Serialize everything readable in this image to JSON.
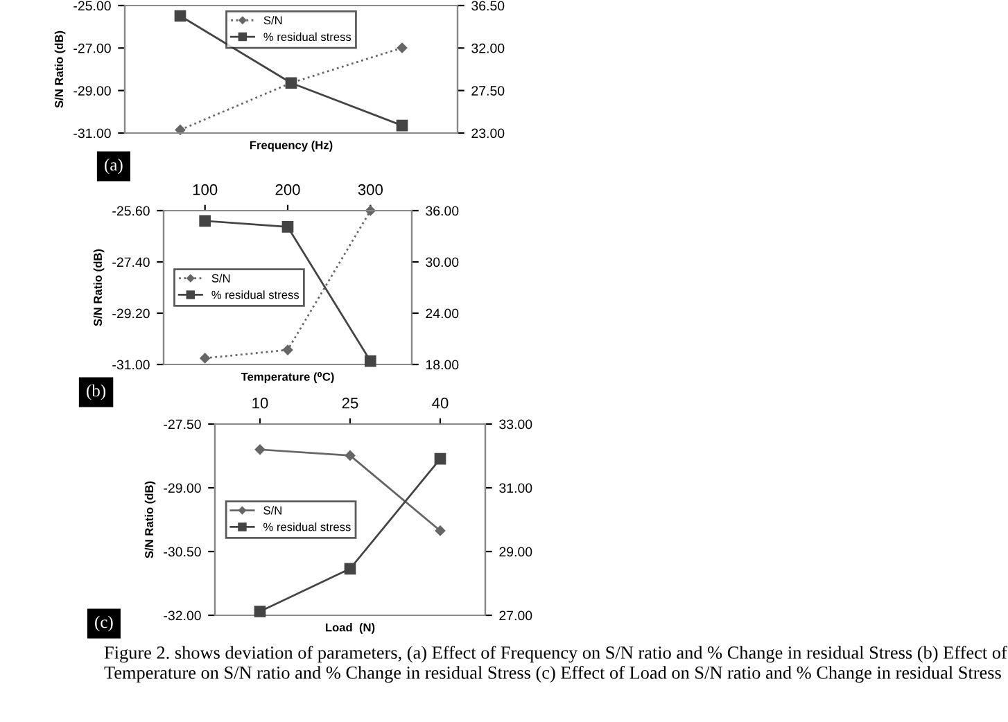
{
  "chart_data": [
    {
      "type": "line",
      "categories": [
        null,
        null,
        null
      ],
      "xlabel": "Frequency (Hz)",
      "ylabel": "S/N Ratio (dB)",
      "legend": "top",
      "annotations": [
        "(a)"
      ],
      "ylim": [
        -31,
        -25
      ],
      "yticks": [
        {
          "value": -31,
          "label": "-31.00"
        },
        {
          "value": -29,
          "label": "-29.00"
        },
        {
          "value": -27,
          "label": "-27.00"
        },
        {
          "value": -25,
          "label": "-25.00"
        }
      ],
      "y2lim": [
        23,
        36.5
      ],
      "y2ticks": [
        {
          "value": 23,
          "label": "23.00"
        },
        {
          "value": 27.5,
          "label": "27.50"
        },
        {
          "value": 32,
          "label": "32.00"
        },
        {
          "value": 36.5,
          "label": "36.50"
        }
      ],
      "series": [
        {
          "name": "S/N",
          "color": "#666666",
          "marker": "diamond",
          "line_style": "dotted",
          "values": [
            -30.85,
            -28.64,
            -26.99
          ]
        },
        {
          "name": "% residual stress",
          "color": "#444444",
          "marker": "square",
          "line_style": "solid",
          "axis": "y2",
          "values": [
            35.4,
            28.3,
            23.8
          ]
        }
      ]
    },
    {
      "type": "line",
      "categories": [
        "100",
        "200",
        "300"
      ],
      "xlabel": "Temperature (⁰C)",
      "ylabel": "S/N Ratio (dB)",
      "legend": "left",
      "annotations": [
        "(b)"
      ],
      "ylim": [
        -31,
        -25.6
      ],
      "yticks": [
        {
          "value": -31,
          "label": "-31.00"
        },
        {
          "value": -29.2,
          "label": "-29.20"
        },
        {
          "value": -27.4,
          "label": "-27.40"
        },
        {
          "value": -25.6,
          "label": "-25.60"
        }
      ],
      "y2lim": [
        18,
        36
      ],
      "y2ticks": [
        {
          "value": 18,
          "label": "18.00"
        },
        {
          "value": 24,
          "label": "24.00"
        },
        {
          "value": 30,
          "label": "30.00"
        },
        {
          "value": 36,
          "label": "36.00"
        }
      ],
      "series": [
        {
          "name": "S/N",
          "color": "#666666",
          "marker": "diamond",
          "line_style": "dotted",
          "values": [
            -30.78,
            -30.49,
            -25.6
          ]
        },
        {
          "name": "% residual stress",
          "color": "#444444",
          "marker": "square",
          "line_style": "solid",
          "axis": "y2",
          "values": [
            34.8,
            34.1,
            18.4
          ]
        }
      ]
    },
    {
      "type": "line",
      "categories": [
        "10",
        "25",
        "40"
      ],
      "xlabel": "Load  (N)",
      "ylabel": "S/N Ratio (dB)",
      "legend": "left",
      "annotations": [
        "(c)",
        "Figure 2. shows deviation of parameters, (a) Effect of Frequency on S/N ratio and % Change in residual Stress (b) Effect of Temperature on S/N ratio and % Change in residual Stress (c) Effect of Load on S/N ratio and % Change in residual Stress"
      ],
      "ylim": [
        -32,
        -27.5
      ],
      "yticks": [
        {
          "value": -32,
          "label": "-32.00"
        },
        {
          "value": -30.5,
          "label": "-30.50"
        },
        {
          "value": -29,
          "label": "-29.00"
        },
        {
          "value": -27.5,
          "label": "-27.50"
        }
      ],
      "y2lim": [
        27,
        33
      ],
      "y2ticks": [
        {
          "value": 27,
          "label": "27.00"
        },
        {
          "value": 29,
          "label": "29.00"
        },
        {
          "value": 31,
          "label": "31.00"
        },
        {
          "value": 33,
          "label": "33.00"
        }
      ],
      "series": [
        {
          "name": "S/N",
          "color": "#666666",
          "marker": "diamond",
          "line_style": "solid",
          "values": [
            -28.1,
            -28.24,
            -30.01
          ]
        },
        {
          "name": "% residual stress",
          "color": "#444444",
          "marker": "square",
          "line_style": "solid",
          "axis": "y2",
          "values": [
            27.12,
            28.46,
            31.91
          ]
        }
      ]
    }
  ]
}
